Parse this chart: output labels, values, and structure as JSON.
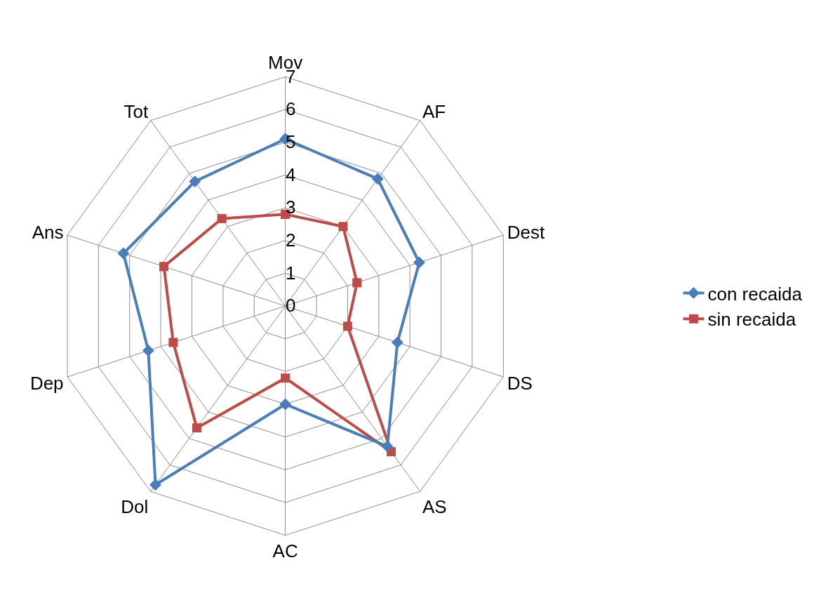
{
  "chart_data": {
    "type": "radar",
    "categories": [
      "Mov",
      "AF",
      "Dest",
      "DS",
      "AS",
      "AC",
      "Dol",
      "Dep",
      "Ans",
      "Tot"
    ],
    "series": [
      {
        "name": "con recaida",
        "color": "#4a7ebb",
        "marker": "diamond",
        "values": [
          5.1,
          4.8,
          4.3,
          3.6,
          5.3,
          3.0,
          6.75,
          4.4,
          5.2,
          4.7
        ]
      },
      {
        "name": "sin recaida",
        "color": "#be4b48",
        "marker": "square",
        "values": [
          2.8,
          3.0,
          2.3,
          2.0,
          5.5,
          2.2,
          4.6,
          3.6,
          3.9,
          3.3
        ]
      }
    ],
    "ylim": [
      0,
      7
    ],
    "yticks": [
      0,
      1,
      2,
      3,
      4,
      5,
      6,
      7
    ],
    "grid": true,
    "legend": "right",
    "line_style": "solid"
  }
}
